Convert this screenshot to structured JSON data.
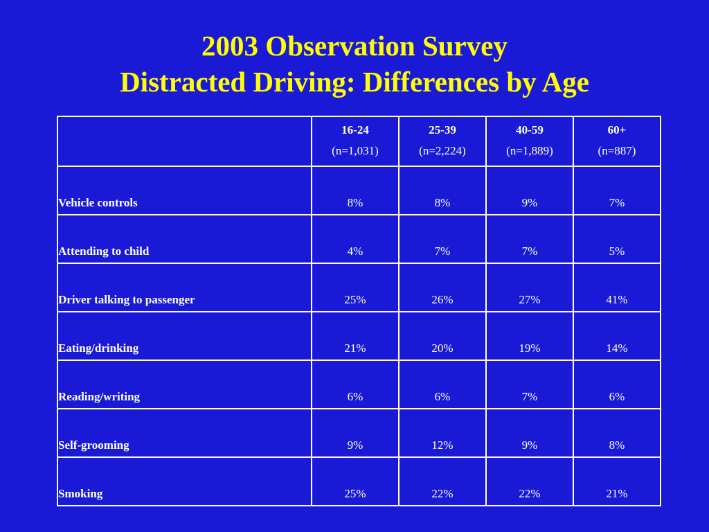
{
  "title": {
    "line1": "2003 Observation Survey",
    "line2": "Distracted Driving: Differences by Age"
  },
  "colors": {
    "background": "#1a1ad6",
    "title": "#ffff00",
    "text": "#ffffff"
  },
  "table": {
    "corner": "",
    "columns": [
      {
        "range": "16-24",
        "n": "(n=1,031)"
      },
      {
        "range": "25-39",
        "n": "(n=2,224)"
      },
      {
        "range": "40-59",
        "n": "(n=1,889)"
      },
      {
        "range": "60+",
        "n": "(n=887)"
      }
    ],
    "rows": [
      {
        "label": "Vehicle controls",
        "values": [
          "8%",
          "8%",
          "9%",
          "7%"
        ]
      },
      {
        "label": "Attending to child",
        "values": [
          "4%",
          "7%",
          "7%",
          "5%"
        ]
      },
      {
        "label": "Driver talking to passenger",
        "values": [
          "25%",
          "26%",
          "27%",
          "41%"
        ]
      },
      {
        "label": "Eating/drinking",
        "values": [
          "21%",
          "20%",
          "19%",
          "14%"
        ]
      },
      {
        "label": "Reading/writing",
        "values": [
          "6%",
          "6%",
          "7%",
          "6%"
        ]
      },
      {
        "label": "Self-grooming",
        "values": [
          "9%",
          "12%",
          "9%",
          "8%"
        ]
      },
      {
        "label": "Smoking",
        "values": [
          "25%",
          "22%",
          "22%",
          "21%"
        ]
      }
    ]
  }
}
